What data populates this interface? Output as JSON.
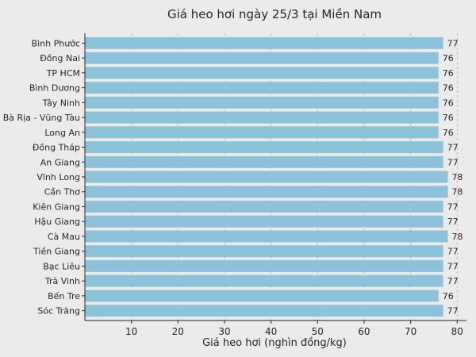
{
  "chart_data": {
    "type": "bar",
    "orientation": "horizontal",
    "title": "Giá heo hơi ngày 25/3 tại Miền Nam",
    "xlabel": "Giá heo hơi (nghìn đồng/kg)",
    "ylabel": "",
    "xlim": [
      0,
      82
    ],
    "xticks": [
      10,
      20,
      30,
      40,
      50,
      60,
      70,
      80
    ],
    "grid": "vertical-dashed",
    "bar_color": "#8cc3db",
    "background": "#ebebeb",
    "categories": [
      "Bình Phước",
      "Đồng Nai",
      "TP HCM",
      "Bình Dương",
      "Tây Ninh",
      "Bà Rịa - Vũng Tàu",
      "Long An",
      "Đồng Tháp",
      "An Giang",
      "Vĩnh Long",
      "Cần Thơ",
      "Kiên Giang",
      "Hậu Giang",
      "Cà Mau",
      "Tiền Giang",
      "Bạc Liêu",
      "Trà Vinh",
      "Bến Tre",
      "Sóc Trăng"
    ],
    "values": [
      77,
      76,
      76,
      76,
      76,
      76,
      76,
      77,
      77,
      78,
      78,
      77,
      77,
      78,
      77,
      77,
      77,
      76,
      77
    ]
  }
}
